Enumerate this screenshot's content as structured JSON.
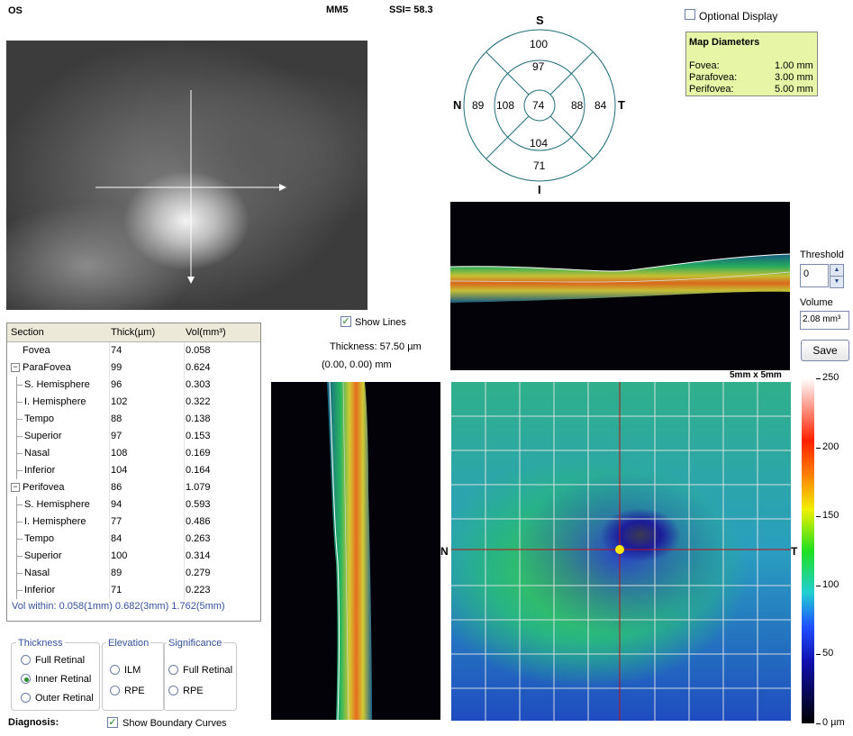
{
  "header": {
    "eye": "OS",
    "scan": "MM5",
    "ssi": "SSI= 58.3"
  },
  "fundus": {
    "crosshair": true
  },
  "sector_map": {
    "labels": {
      "S": "S",
      "N": "N",
      "T": "T",
      "I": "I"
    },
    "outer": {
      "superior": "100",
      "nasal": "89",
      "temporal": "84",
      "inferior": "71"
    },
    "inner": {
      "superior": "97",
      "nasal": "108",
      "temporal": "88",
      "inferior": "104"
    },
    "center": "74"
  },
  "optional_display": {
    "label": "Optional Display",
    "checked": false
  },
  "map_diameters": {
    "title": "Map Diameters",
    "rows": [
      {
        "label": "Fovea:",
        "value": "1.00 mm"
      },
      {
        "label": "Parafovea:",
        "value": "3.00 mm"
      },
      {
        "label": "Perifovea:",
        "value": "5.00 mm"
      }
    ],
    "bg": "#e6f5a6"
  },
  "table": {
    "headers": [
      "Section",
      "Thick(µm)",
      "Vol(mm³)"
    ],
    "rows": [
      {
        "section": "Fovea",
        "thick": "74",
        "vol": "0.058",
        "level": 0,
        "expander": ""
      },
      {
        "section": "ParaFovea",
        "thick": "99",
        "vol": "0.624",
        "level": 0,
        "expander": "−"
      },
      {
        "section": "S. Hemisphere",
        "thick": "96",
        "vol": "0.303",
        "level": 1,
        "expander": ""
      },
      {
        "section": "I. Hemisphere",
        "thick": "102",
        "vol": "0.322",
        "level": 1,
        "expander": ""
      },
      {
        "section": "Tempo",
        "thick": "88",
        "vol": "0.138",
        "level": 1,
        "expander": ""
      },
      {
        "section": "Superior",
        "thick": "97",
        "vol": "0.153",
        "level": 1,
        "expander": ""
      },
      {
        "section": "Nasal",
        "thick": "108",
        "vol": "0.169",
        "level": 1,
        "expander": ""
      },
      {
        "section": "Inferior",
        "thick": "104",
        "vol": "0.164",
        "level": 1,
        "expander": ""
      },
      {
        "section": "Perifovea",
        "thick": "86",
        "vol": "1.079",
        "level": 0,
        "expander": "−"
      },
      {
        "section": "S. Hemisphere",
        "thick": "94",
        "vol": "0.593",
        "level": 1,
        "expander": ""
      },
      {
        "section": "I. Hemisphere",
        "thick": "77",
        "vol": "0.486",
        "level": 1,
        "expander": ""
      },
      {
        "section": "Tempo",
        "thick": "84",
        "vol": "0.263",
        "level": 1,
        "expander": ""
      },
      {
        "section": "Superior",
        "thick": "100",
        "vol": "0.314",
        "level": 1,
        "expander": ""
      },
      {
        "section": "Nasal",
        "thick": "89",
        "vol": "0.279",
        "level": 1,
        "expander": ""
      },
      {
        "section": "Inferior",
        "thick": "71",
        "vol": "0.223",
        "level": 1,
        "expander": ""
      }
    ],
    "footer": "Vol within: 0.058(1mm) 0.682(3mm) 1.762(5mm)"
  },
  "show_lines": {
    "label": "Show Lines",
    "checked": true
  },
  "thickness_readout": "Thickness: 57.50 µm",
  "coord_readout": "(0.00, 0.00) mm",
  "threshold": {
    "label": "Threshold",
    "value": "0"
  },
  "volume": {
    "label": "Volume",
    "value": "2.08 mm³"
  },
  "save_label": "Save",
  "map": {
    "size_label": "5mm x 5mm",
    "left": "N",
    "right": "T"
  },
  "legend": {
    "labels": [
      "250",
      "200",
      "150",
      "100",
      "50",
      "0 µm"
    ],
    "values": [
      250,
      200,
      150,
      100,
      50,
      0
    ]
  },
  "groups": {
    "thickness": {
      "title": "Thickness",
      "options": [
        "Full Retinal",
        "Inner Retinal",
        "Outer Retinal"
      ],
      "selected": 1
    },
    "elevation": {
      "title": "Elevation",
      "options": [
        "ILM",
        "RPE"
      ]
    },
    "significance": {
      "title": "Significance",
      "options": [
        "Full Retinal",
        "RPE"
      ]
    }
  },
  "diagnosis_label": "Diagnosis:",
  "show_boundary": {
    "label": "Show Boundary Curves",
    "checked": true
  }
}
